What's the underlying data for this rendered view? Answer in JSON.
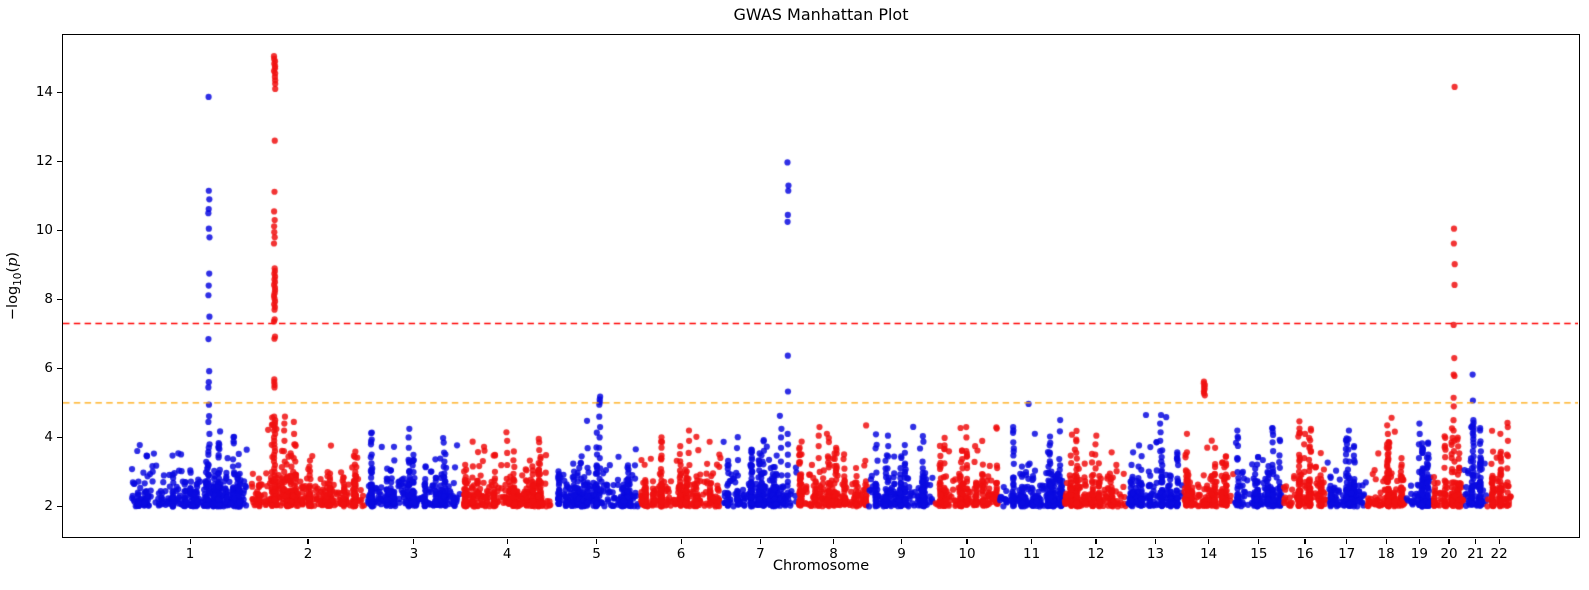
{
  "chart_data": {
    "type": "scatter",
    "title": "GWAS Manhattan Plot",
    "xlabel": "Chromosome",
    "ylabel": {
      "pre": "−log",
      "sub": "10",
      "open": "(",
      "var": "p",
      "close": ")"
    },
    "ylabel_plain": "-log10(p)",
    "yticks": [
      2,
      4,
      6,
      8,
      10,
      12,
      14
    ],
    "ylim": [
      1.09,
      15.73
    ],
    "grid": false,
    "legend": "none",
    "point_color_odd_chr": "#0a0ae0",
    "point_color_even_chr": "#f01010",
    "point_alpha": 0.85,
    "point_radius_px": 3.1,
    "threshold_lines": [
      {
        "name": "genome-wide-significance",
        "y": 7.3,
        "color": "#ff0000",
        "style": "dashed"
      },
      {
        "name": "suggestive-significance",
        "y": 5.0,
        "color": "#ffa500",
        "style": "dashed"
      }
    ],
    "background_points": {
      "min_y": 2.0,
      "typical_max_y": 4.7,
      "density_per_mb": 1.8
    },
    "chromosomes": [
      {
        "label": "1",
        "length_mb": 248.9
      },
      {
        "label": "2",
        "length_mb": 242.2
      },
      {
        "label": "3",
        "length_mb": 198.3
      },
      {
        "label": "4",
        "length_mb": 190.2
      },
      {
        "label": "5",
        "length_mb": 181.5
      },
      {
        "label": "6",
        "length_mb": 170.8
      },
      {
        "label": "7",
        "length_mb": 159.3
      },
      {
        "label": "8",
        "length_mb": 145.1
      },
      {
        "label": "9",
        "length_mb": 138.4
      },
      {
        "label": "10",
        "length_mb": 133.8
      },
      {
        "label": "11",
        "length_mb": 135.1
      },
      {
        "label": "12",
        "length_mb": 133.3
      },
      {
        "label": "13",
        "length_mb": 114.4
      },
      {
        "label": "14",
        "length_mb": 107.0
      },
      {
        "label": "15",
        "length_mb": 101.9
      },
      {
        "label": "16",
        "length_mb": 90.3
      },
      {
        "label": "17",
        "length_mb": 83.3
      },
      {
        "label": "18",
        "length_mb": 80.4
      },
      {
        "label": "19",
        "length_mb": 58.6
      },
      {
        "label": "20",
        "length_mb": 64.4
      },
      {
        "label": "21",
        "length_mb": 46.7
      },
      {
        "label": "22",
        "length_mb": 50.8
      }
    ],
    "peaks": [
      {
        "chr": "1",
        "x_frac": 0.66,
        "values": [
          13.87,
          11.15,
          10.9,
          10.62,
          10.5,
          10.05,
          9.8,
          8.75,
          8.4,
          8.12,
          7.5,
          6.85,
          5.92,
          5.6,
          5.45,
          4.95,
          4.62,
          4.45,
          4.1,
          3.8,
          3.5,
          3.2,
          2.9,
          2.6,
          2.4,
          2.2
        ]
      },
      {
        "chr": "2",
        "x_frac": 0.215,
        "values": [
          15.05,
          14.97,
          14.9,
          14.83,
          14.76,
          14.7,
          14.62,
          14.55,
          14.45,
          14.35,
          14.25,
          14.1,
          12.6,
          11.12,
          10.55,
          10.3,
          10.12,
          9.95,
          9.8,
          9.62,
          8.9,
          8.82,
          8.74,
          8.66,
          8.58,
          8.5,
          8.42,
          8.34,
          8.26,
          8.18,
          8.1,
          8.02,
          7.94,
          7.86,
          7.78,
          7.7,
          7.42,
          7.36,
          6.92,
          6.86,
          5.68,
          5.6,
          5.52,
          5.45,
          4.6,
          4.5,
          4.42,
          4.35,
          4.28,
          4.2,
          4.1,
          4.0,
          3.9,
          3.8,
          3.7,
          3.6,
          3.5,
          3.4,
          3.3,
          3.2,
          3.1,
          3.0,
          2.9,
          2.8,
          2.7,
          2.6,
          2.5,
          2.4,
          2.3,
          2.2
        ]
      },
      {
        "chr": "2",
        "x_frac": 0.3,
        "values": [
          4.6,
          4.4,
          4.2,
          3.9,
          3.6,
          3.3,
          3.0,
          2.7,
          2.5,
          2.3
        ]
      },
      {
        "chr": "2",
        "x_frac": 0.38,
        "values": [
          4.45,
          4.1,
          3.8,
          3.4,
          3.0,
          2.6,
          2.3
        ]
      },
      {
        "chr": "3",
        "x_frac": 0.45,
        "values": [
          4.25,
          4.0,
          3.7,
          3.35,
          3.0,
          2.6
        ]
      },
      {
        "chr": "4",
        "x_frac": 0.5,
        "values": [
          4.15,
          3.9,
          3.55,
          3.2,
          2.8
        ]
      },
      {
        "chr": "5",
        "x_frac": 0.54,
        "values": [
          5.18,
          5.1,
          5.02,
          4.95,
          4.6,
          4.3,
          4.0,
          3.7,
          3.4,
          3.1,
          2.8,
          2.5,
          2.3
        ]
      },
      {
        "chr": "6",
        "x_frac": 0.6,
        "values": [
          4.2,
          3.9,
          3.55,
          3.2,
          2.8
        ]
      },
      {
        "chr": "7",
        "x_frac": 0.78,
        "values": [
          4.25,
          4.0,
          3.7,
          3.3,
          2.9,
          2.5
        ]
      },
      {
        "chr": "7",
        "x_frac": 0.865,
        "values": [
          11.97,
          11.3,
          11.15,
          10.45,
          10.25,
          6.37,
          5.33,
          4.1,
          3.8,
          3.5,
          3.2,
          2.9,
          2.6,
          2.4,
          2.2
        ]
      },
      {
        "chr": "8",
        "x_frac": 0.3,
        "values": [
          4.3,
          4.05,
          3.75,
          3.4,
          3.0,
          2.6
        ]
      },
      {
        "chr": "9",
        "x_frac": 0.3,
        "values": [
          4.05,
          3.75,
          3.45,
          3.1,
          2.7
        ]
      },
      {
        "chr": "10",
        "x_frac": 0.5,
        "values": [
          4.3,
          4.0,
          3.6,
          3.2,
          2.8
        ]
      },
      {
        "chr": "11",
        "x_frac": 0.45,
        "values": [
          4.97,
          3.2,
          2.8,
          2.5
        ]
      },
      {
        "chr": "12",
        "x_frac": 0.5,
        "values": [
          4.05,
          3.8,
          3.5,
          3.1,
          2.7
        ]
      },
      {
        "chr": "13",
        "x_frac": 0.6,
        "values": [
          4.65,
          4.4,
          4.15,
          3.9,
          3.6,
          3.3,
          3.0,
          2.7,
          2.4
        ]
      },
      {
        "chr": "14",
        "x_frac": 0.42,
        "values": [
          5.62,
          5.57,
          5.52,
          5.47,
          5.43,
          5.38,
          5.33,
          5.28,
          5.22,
          2.9,
          2.5
        ]
      },
      {
        "chr": "16",
        "x_frac": 0.5,
        "values": [
          4.1,
          3.8,
          3.4,
          3.0,
          2.6
        ]
      },
      {
        "chr": "17",
        "x_frac": 0.55,
        "values": [
          4.2,
          3.95,
          3.65,
          3.3,
          2.9,
          2.55
        ]
      },
      {
        "chr": "18",
        "x_frac": 0.55,
        "values": [
          4.35,
          4.1,
          3.8,
          3.5,
          3.2,
          2.8,
          2.5
        ]
      },
      {
        "chr": "19",
        "x_frac": 0.5,
        "values": [
          4.4,
          4.1,
          3.8,
          3.4,
          3.0,
          2.6
        ]
      },
      {
        "chr": "20",
        "x_frac": 0.675,
        "values": [
          14.16,
          10.05,
          9.62,
          9.02,
          8.42,
          7.26,
          6.3,
          5.82,
          5.78,
          5.15,
          4.9,
          4.5,
          4.2,
          3.9,
          3.6,
          3.3,
          3.0,
          2.7,
          2.5,
          2.3
        ]
      },
      {
        "chr": "21",
        "x_frac": 0.4,
        "values": [
          5.82,
          5.07,
          4.5,
          4.42,
          4.35,
          4.28,
          4.2,
          4.12,
          4.05,
          3.95,
          3.85,
          3.75,
          3.6,
          3.45,
          3.3,
          3.15,
          3.0,
          2.8,
          2.6,
          2.4
        ]
      },
      {
        "chr": "22",
        "x_frac": 0.85,
        "values": [
          4.42,
          4.3,
          3.9,
          3.5,
          3.1,
          2.7,
          2.4
        ]
      }
    ]
  }
}
